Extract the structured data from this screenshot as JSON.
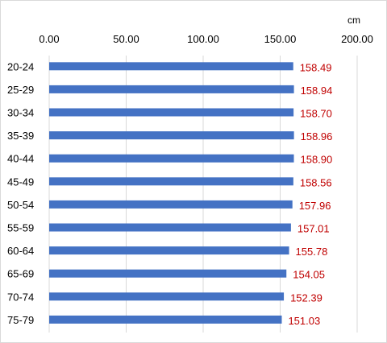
{
  "chart_data": {
    "type": "bar",
    "orientation": "horizontal",
    "unit_label": "cm",
    "x_ticks": [
      "0.00",
      "50.00",
      "100.00",
      "150.00",
      "200.00"
    ],
    "xlim": [
      0,
      200
    ],
    "grid": "vertical",
    "categories": [
      "20-24",
      "25-29",
      "30-34",
      "35-39",
      "40-44",
      "45-49",
      "50-54",
      "55-59",
      "60-64",
      "65-69",
      "70-74",
      "75-79"
    ],
    "values": [
      158.49,
      158.94,
      158.7,
      158.96,
      158.9,
      158.56,
      157.96,
      157.01,
      155.78,
      154.05,
      152.39,
      151.03
    ],
    "value_labels": [
      "158.49",
      "158.94",
      "158.70",
      "158.96",
      "158.90",
      "158.56",
      "157.96",
      "157.01",
      "155.78",
      "154.05",
      "152.39",
      "151.03"
    ],
    "colors": {
      "bar": "#4472c4",
      "value_label": "#c00000",
      "grid": "#d9d9d9"
    }
  }
}
